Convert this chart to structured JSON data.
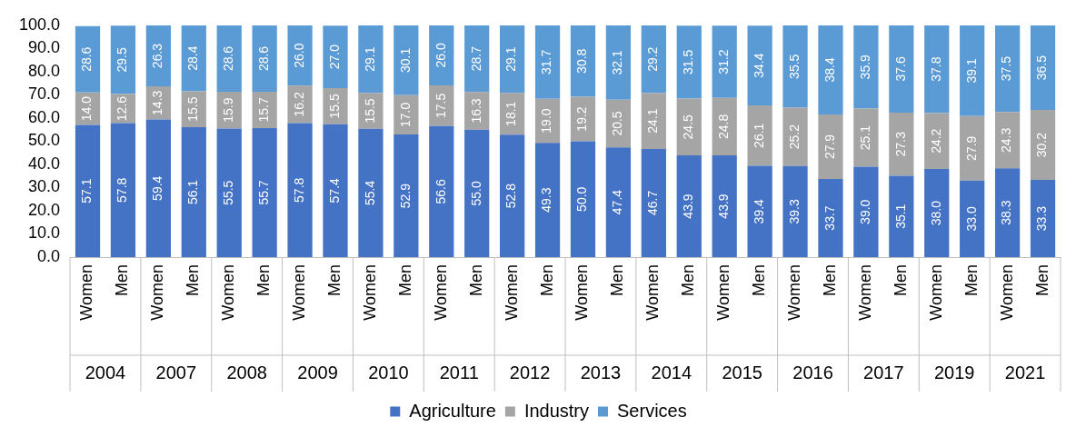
{
  "chart_data": {
    "type": "bar",
    "stacked": true,
    "categories": [
      "Women",
      "Men",
      "Women",
      "Men",
      "Women",
      "Men",
      "Women",
      "Men",
      "Women",
      "Men",
      "Women",
      "Men",
      "Women",
      "Men",
      "Women",
      "Men",
      "Women",
      "Men",
      "Women",
      "Men",
      "Women",
      "Men",
      "Women",
      "Men",
      "Women",
      "Men",
      "Women",
      "Men"
    ],
    "annotations": [
      "2004",
      "2007",
      "2008",
      "2009",
      "2010",
      "2011",
      "2012",
      "2013",
      "2014",
      "2015",
      "2016",
      "2017",
      "2019",
      "2021"
    ],
    "series": [
      {
        "name": "Agriculture",
        "color": "#4472c4",
        "values": [
          57.1,
          57.8,
          59.4,
          56.1,
          55.5,
          55.7,
          57.8,
          57.4,
          55.4,
          52.9,
          56.6,
          55.0,
          52.8,
          49.3,
          50.0,
          47.4,
          46.7,
          43.9,
          43.9,
          39.4,
          39.3,
          33.7,
          39.0,
          35.1,
          38.0,
          33.0,
          38.3,
          33.3
        ],
        "value_labels": [
          "57.1",
          "57.8",
          "59.4",
          "56.1",
          "55.5",
          "55.7",
          "57.8",
          "57.4",
          "55.4",
          "52.9",
          "56.6",
          "55.0",
          "52.8",
          "49.3",
          "50.0",
          "47.4",
          "46.7",
          "43.9",
          "43.9",
          "39.4",
          "39.3",
          "33.7",
          "39.0",
          "35.1",
          "38.0",
          "33.0",
          "38.3",
          "33.3"
        ]
      },
      {
        "name": "Industry",
        "color": "#a5a5a5",
        "values": [
          14.0,
          12.6,
          14.3,
          15.5,
          15.9,
          15.7,
          16.2,
          15.5,
          15.5,
          17.0,
          17.5,
          16.3,
          18.1,
          19.0,
          19.2,
          20.5,
          24.1,
          24.5,
          24.8,
          26.1,
          25.2,
          27.9,
          25.1,
          27.3,
          24.2,
          27.9,
          24.3,
          30.2
        ],
        "value_labels": [
          "14.0",
          "12.6",
          "14.3",
          "15.5",
          "15.9",
          "15.7",
          "16.2",
          "15.5",
          "15.5",
          "17.0",
          "17.5",
          "16.3",
          "18.1",
          "19.0",
          "19.2",
          "20.5",
          "24.1",
          "24.5",
          "24.8",
          "26.1",
          "25.2",
          "27.9",
          "25.1",
          "27.3",
          "24.2",
          "27.9",
          "24.3",
          "30.2"
        ]
      },
      {
        "name": "Services",
        "color": "#5b9bd5",
        "values": [
          28.6,
          29.5,
          26.3,
          28.4,
          28.6,
          28.6,
          26.0,
          27.0,
          29.1,
          30.1,
          26.0,
          28.7,
          29.1,
          31.7,
          30.8,
          32.1,
          29.2,
          31.5,
          31.2,
          34.4,
          35.5,
          38.4,
          35.9,
          37.6,
          37.8,
          39.1,
          37.5,
          36.5
        ],
        "value_labels": [
          "28.6",
          "29.5",
          "26.3",
          "28.4",
          "28.6",
          "28.6",
          "26.0",
          "27.0",
          "29.1",
          "30.1",
          "26.0",
          "28.7",
          "29.1",
          "31.7",
          "30.8",
          "32.1",
          "29.2",
          "31.5",
          "31.2",
          "34.4",
          "35.5",
          "38.4",
          "35.9",
          "37.6",
          "37.8",
          "39.1",
          "37.5",
          "36.5"
        ]
      }
    ],
    "ylim": [
      0,
      100
    ],
    "yticks": [
      {
        "value": 0,
        "label": "0.0"
      },
      {
        "value": 10,
        "label": "10.0"
      },
      {
        "value": 20,
        "label": "20.0"
      },
      {
        "value": 30,
        "label": "30.0"
      },
      {
        "value": 40,
        "label": "40.0"
      },
      {
        "value": 50,
        "label": "50.0"
      },
      {
        "value": 60,
        "label": "60.0"
      },
      {
        "value": 70,
        "label": "70.0"
      },
      {
        "value": 80,
        "label": "80.0"
      },
      {
        "value": 90,
        "label": "90.0"
      },
      {
        "value": 100,
        "label": "100.0"
      }
    ],
    "grid": false,
    "legend": "bottom"
  }
}
